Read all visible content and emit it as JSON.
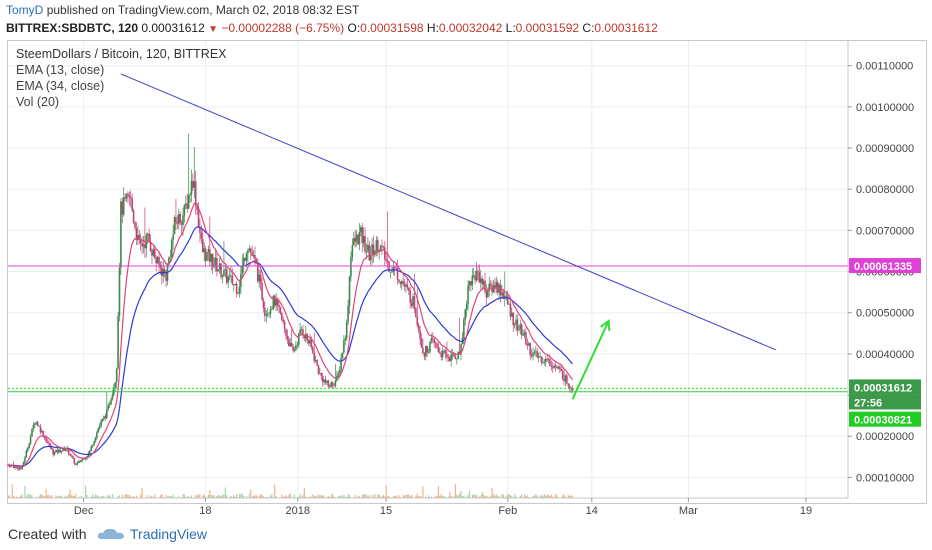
{
  "header": {
    "author": "TomyD",
    "published_text": "published on TradingView.com, March 02, 2018 08:32 EST",
    "symbol": "BITTREX:SBDBTC, 120",
    "last": "0.00031612",
    "change": "−0.00002288 (−6.75%)",
    "open_label": "O:",
    "open": "0.00031598",
    "high_label": "H:",
    "high": "0.00032042",
    "low_label": "L:",
    "low": "0.00031592",
    "close_label": "C:",
    "close": "0.00031612"
  },
  "legend": {
    "title": "SteemDollars / Bitcoin, 120, BITTREX",
    "ema13": "EMA (13, close)",
    "ema34": "EMA (34, close)",
    "vol": "Vol (20)"
  },
  "footer": {
    "created_with": "Created with",
    "brand": "TradingView"
  },
  "colors": {
    "up": "#3b8a4a",
    "down": "#c0447a",
    "ema13": "#e0457b",
    "ema34": "#2b3bd6",
    "trendline": "#3a3fc4",
    "resistance": "#e040d8",
    "support": "#30d040",
    "arrow": "#33dd33"
  },
  "chart_data": {
    "type": "candlestick",
    "title": "SteemDollars / Bitcoin, 120, BITTREX",
    "ylim": [
      5e-05,
      0.00116
    ],
    "y_ticks": [
      "0.00010000",
      "0.00020000",
      "0.00030000",
      "0.00040000",
      "0.00050000",
      "0.00060000",
      "0.00070000",
      "0.00080000",
      "0.00090000",
      "0.00100000",
      "0.00110000"
    ],
    "x_ticks": [
      "Dec",
      "18",
      "2018",
      "15",
      "Feb",
      "14",
      "Mar",
      "19"
    ],
    "price_labels": [
      {
        "text": "0.00061335",
        "value": 0.00061335,
        "color": "#e040d8"
      },
      {
        "text": "0.00031612",
        "value": 0.00031612,
        "color": "#3b9a4a"
      },
      {
        "text": "27:56",
        "value": 0.000275,
        "color": "#3b9a4a"
      },
      {
        "text": "0.00030821",
        "value": 0.00030821,
        "color": "#22cc22"
      }
    ],
    "resistance_level": 0.00061335,
    "support_levels": [
      0.00030821,
      0.00031612
    ],
    "path_points": [
      [
        0,
        0.00013
      ],
      [
        0.03,
        0.00012
      ],
      [
        0.06,
        0.00024
      ],
      [
        0.1,
        0.00016
      ],
      [
        0.13,
        0.00017
      ],
      [
        0.15,
        0.00013
      ],
      [
        0.18,
        0.00016
      ],
      [
        0.2,
        0.00022
      ],
      [
        0.22,
        0.00026
      ],
      [
        0.24,
        0.00035
      ],
      [
        0.25,
        0.00075
      ],
      [
        0.27,
        0.00078
      ],
      [
        0.29,
        0.00066
      ],
      [
        0.31,
        0.00068
      ],
      [
        0.33,
        0.00062
      ],
      [
        0.35,
        0.00059
      ],
      [
        0.37,
        0.00072
      ],
      [
        0.39,
        0.00074
      ],
      [
        0.41,
        0.00083
      ],
      [
        0.43,
        0.00065
      ],
      [
        0.45,
        0.00063
      ],
      [
        0.48,
        0.00059
      ],
      [
        0.51,
        0.00056
      ],
      [
        0.53,
        0.00067
      ],
      [
        0.55,
        0.00061
      ],
      [
        0.57,
        0.0005
      ],
      [
        0.59,
        0.00053
      ],
      [
        0.61,
        0.00047
      ],
      [
        0.63,
        0.0004
      ],
      [
        0.65,
        0.00046
      ],
      [
        0.67,
        0.00042
      ],
      [
        0.69,
        0.00035
      ],
      [
        0.71,
        0.00032
      ],
      [
        0.73,
        0.00034
      ],
      [
        0.75,
        0.00047
      ],
      [
        0.76,
        0.00066
      ],
      [
        0.78,
        0.00069
      ],
      [
        0.8,
        0.00064
      ],
      [
        0.82,
        0.00067
      ],
      [
        0.84,
        0.00062
      ],
      [
        0.86,
        0.0006
      ],
      [
        0.88,
        0.00056
      ],
      [
        0.9,
        0.00052
      ],
      [
        0.92,
        0.0004
      ],
      [
        0.94,
        0.00043
      ],
      [
        0.96,
        0.0004
      ],
      [
        0.98,
        0.00039
      ],
      [
        1.0,
        0.0004
      ],
      [
        1.02,
        0.00057
      ],
      [
        1.04,
        0.0006
      ],
      [
        1.06,
        0.00055
      ],
      [
        1.08,
        0.00057
      ],
      [
        1.1,
        0.00054
      ],
      [
        1.12,
        0.00048
      ],
      [
        1.14,
        0.00045
      ],
      [
        1.16,
        0.0004
      ],
      [
        1.18,
        0.00039
      ],
      [
        1.2,
        0.00038
      ],
      [
        1.22,
        0.00036
      ],
      [
        1.24,
        0.00033
      ],
      [
        1.25,
        0.000316
      ]
    ],
    "trendline": {
      "from": [
        0.25,
        0.00108
      ],
      "to": [
        1.7,
        0.00041
      ]
    },
    "arrow": {
      "from": [
        1.25,
        0.00029
      ],
      "to": [
        1.33,
        0.00048
      ]
    }
  }
}
